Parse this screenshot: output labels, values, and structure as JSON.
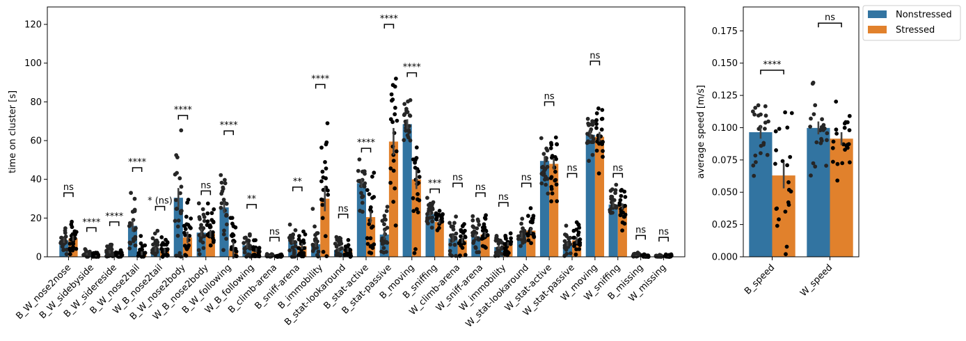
{
  "colors": {
    "nonstressed": "#3274a1",
    "stressed": "#e1812c"
  },
  "legend": {
    "position": "upper-right-outside",
    "entries": [
      {
        "key": "nonstressed",
        "label": "Nonstressed"
      },
      {
        "key": "stressed",
        "label": "Stressed"
      }
    ]
  },
  "chart_data": [
    {
      "type": "bar",
      "ylabel": "time on cluster [s]",
      "xlabel": "",
      "ylim": [
        0,
        129
      ],
      "yticks": [
        0,
        20,
        40,
        60,
        80,
        100,
        120
      ],
      "categories": [
        "B_W_nose2nose",
        "B_W_sidebyside",
        "B_W_sidereside",
        "B_W_nose2tail",
        "W_B_nose2tail",
        "B_W_nose2body",
        "W_B_nose2body",
        "B_W_following",
        "W_B_following",
        "B_climb-arena",
        "B_sniff-arena",
        "B_immobility",
        "B_stat-lookaround",
        "B_stat-active",
        "B_stat-passive",
        "B_moving",
        "B_sniffing",
        "W_climb-arena",
        "W_sniff-arena",
        "W_immobility",
        "W_stat-lookaround",
        "W_stat-active",
        "W_stat-passive",
        "W_moving",
        "W_sniffing",
        "B_missing",
        "W_missing"
      ],
      "series": [
        {
          "name": "Nonstressed",
          "values": [
            8.5,
            1.5,
            2.5,
            16,
            3.8,
            30.5,
            12.5,
            25.5,
            6,
            0.5,
            8,
            6.5,
            3.5,
            38,
            11.5,
            68.5,
            22,
            9.5,
            10.5,
            5,
            11,
            49.5,
            6.5,
            63,
            27,
            0.6,
            0.3
          ],
          "err": [
            1.4,
            0.5,
            0.8,
            3,
            1.2,
            5,
            2,
            3,
            1.5,
            0.2,
            1.2,
            1.5,
            1,
            2.2,
            2.6,
            2.5,
            1.2,
            2,
            1.4,
            1,
            1.5,
            2.5,
            1,
            2.2,
            1.5,
            0.2,
            0.1
          ]
        },
        {
          "name": "Stressed",
          "values": [
            9.5,
            0.5,
            0.8,
            1.8,
            3,
            10,
            12,
            3.5,
            3.5,
            0.1,
            5.5,
            30,
            3.5,
            20.5,
            59.5,
            40,
            18,
            8.5,
            11.5,
            6.5,
            13.5,
            48,
            8.5,
            62,
            26,
            0.2,
            0.3
          ],
          "err": [
            1.4,
            0.3,
            0.3,
            1,
            1.2,
            3,
            2,
            4.5,
            1,
            0.1,
            1.6,
            6.5,
            1,
            3,
            7,
            5,
            1,
            1.5,
            1.4,
            1.1,
            1.7,
            3,
            1.8,
            2.5,
            1.6,
            0.1,
            0.1
          ]
        }
      ],
      "annotations": [
        "ns",
        "****",
        "****",
        "****",
        "* (ns)",
        "****",
        "ns",
        "****",
        "**",
        "ns",
        "**",
        "****",
        "ns",
        "****",
        "****",
        "****",
        "***",
        "ns",
        "ns",
        "ns",
        "ns",
        "ns",
        "ns",
        "ns",
        "ns",
        "ns",
        "ns"
      ],
      "bracket_y": [
        33,
        15,
        18,
        46,
        26,
        73,
        34,
        65,
        27,
        10,
        36,
        89,
        22,
        56,
        120,
        95,
        35,
        38,
        33,
        28,
        38,
        80,
        43,
        101,
        43,
        11,
        10
      ]
    },
    {
      "type": "bar",
      "ylabel": "average speed [m/s]",
      "xlabel": "",
      "ylim": [
        0,
        0.1935
      ],
      "yticks": [
        0.0,
        0.025,
        0.05,
        0.075,
        0.1,
        0.125,
        0.15,
        0.175
      ],
      "ytick_labels": [
        "0.000",
        "0.025",
        "0.050",
        "0.075",
        "0.100",
        "0.125",
        "0.150",
        "0.175"
      ],
      "categories": [
        "B_speed",
        "W_speed"
      ],
      "series": [
        {
          "name": "Nonstressed",
          "values": [
            0.0965,
            0.0998
          ],
          "err": [
            0.005,
            0.005
          ]
        },
        {
          "name": "Stressed",
          "values": [
            0.063,
            0.0915
          ],
          "err": [
            0.01,
            0.005
          ]
        }
      ],
      "annotations": [
        "****",
        "ns"
      ],
      "bracket_y": [
        0.1445,
        0.181
      ]
    }
  ]
}
